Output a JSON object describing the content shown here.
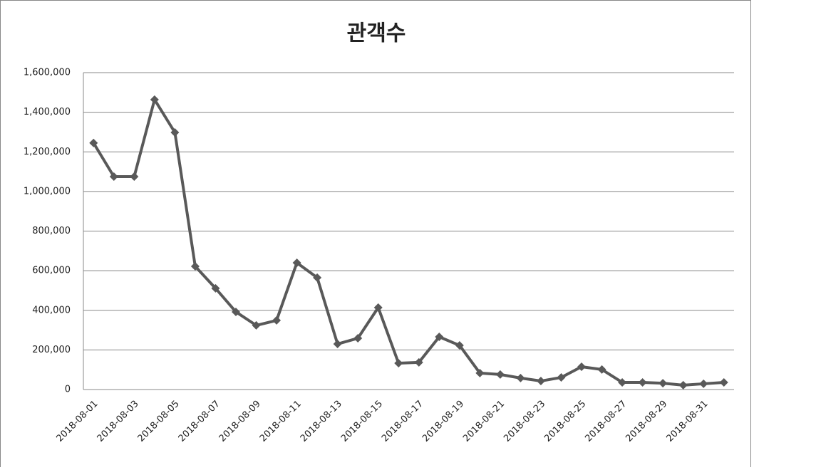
{
  "chart_data": {
    "type": "line",
    "title": "관객수",
    "categories": [
      "2018-08-01",
      null,
      "2018-08-03",
      null,
      "2018-08-05",
      null,
      "2018-08-07",
      null,
      "2018-08-09",
      null,
      "2018-08-11",
      null,
      "2018-08-13",
      null,
      "2018-08-15",
      null,
      "2018-08-17",
      null,
      "2018-08-19",
      null,
      "2018-08-21",
      null,
      "2018-08-23",
      null,
      "2018-08-25",
      null,
      "2018-08-27",
      null,
      "2018-08-29",
      null,
      "2018-08-31",
      null
    ],
    "values": [
      1245000,
      1075000,
      1075000,
      1464000,
      1298000,
      622000,
      511000,
      392000,
      324000,
      349000,
      640000,
      565000,
      230000,
      259000,
      414000,
      133000,
      137000,
      266000,
      223000,
      83000,
      76000,
      58000,
      43000,
      61000,
      115000,
      101000,
      36000,
      36000,
      32000,
      22000,
      29000,
      36000
    ],
    "color": "#595959",
    "ylim": [
      0,
      1600000
    ],
    "yticks": [
      0,
      {
        "value": 200000,
        "label": "200,000"
      },
      {
        "value": 400000,
        "label": "400,000"
      },
      {
        "value": 600000,
        "label": "600,000"
      },
      {
        "value": 800000,
        "label": "800,000"
      },
      {
        "value": 1000000,
        "label": "1,000,000"
      },
      {
        "value": 1200000,
        "label": "1,200,000"
      },
      {
        "value": 1400000,
        "label": "1,400,000"
      },
      {
        "value": 1600000,
        "label": "1,600,000"
      }
    ],
    "grid": true
  }
}
